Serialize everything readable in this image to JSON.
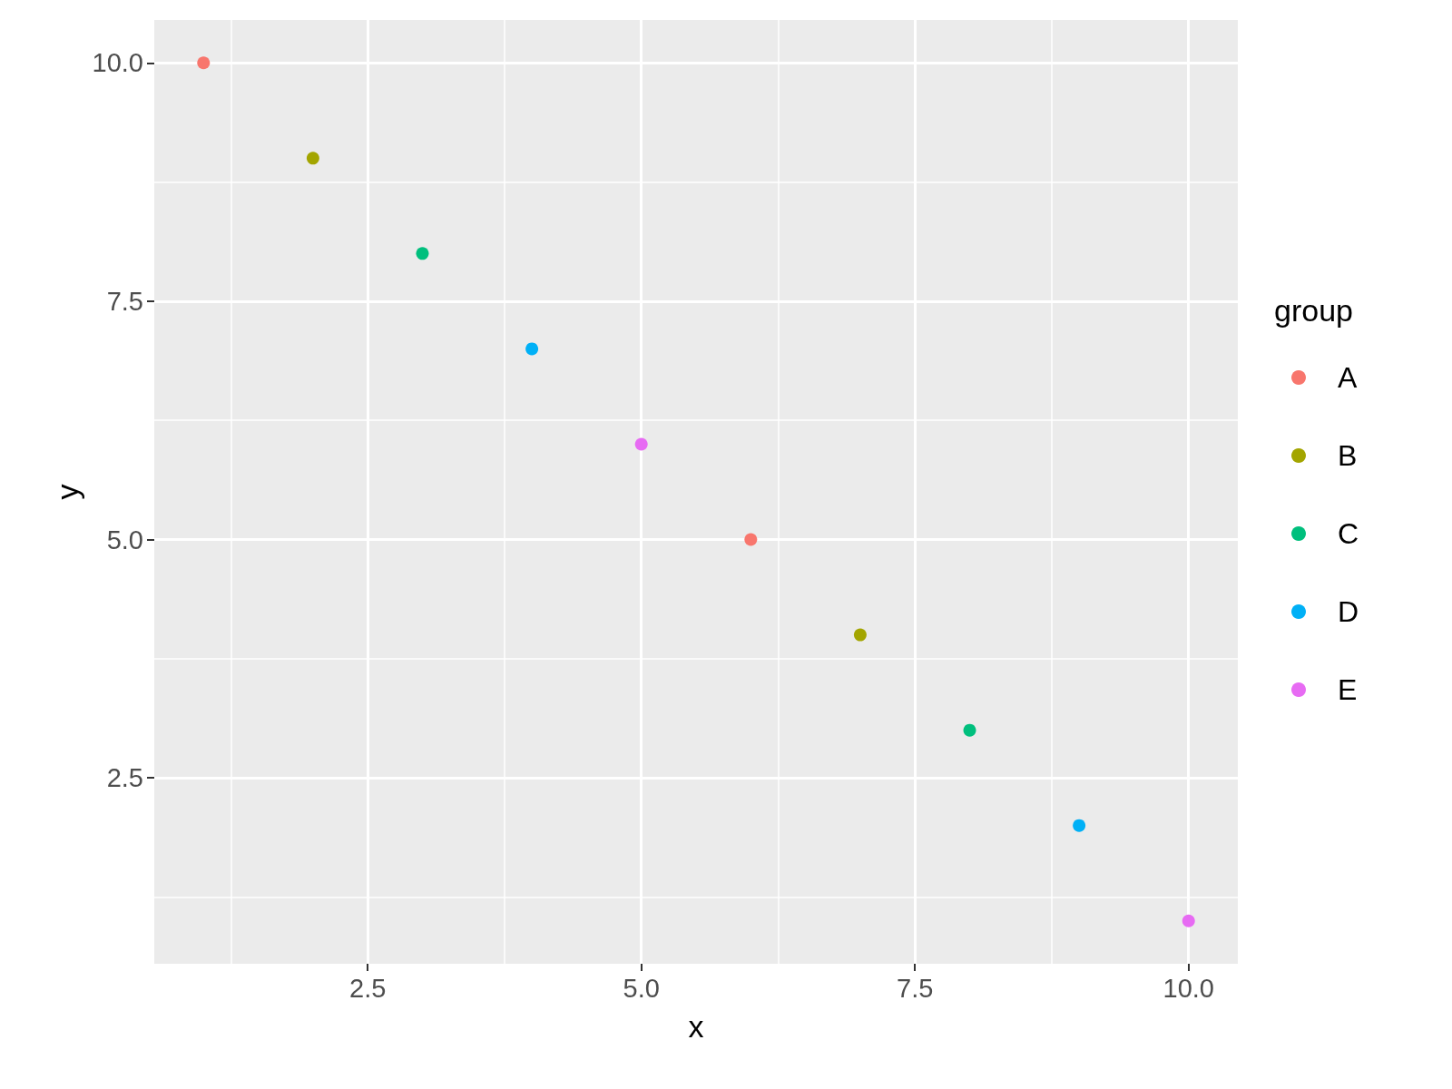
{
  "chart_data": {
    "type": "scatter",
    "xlabel": "x",
    "ylabel": "y",
    "legend_title": "group",
    "legend": "right",
    "grid": true,
    "marker": "circle",
    "xlim": [
      0.55,
      10.45
    ],
    "ylim": [
      0.55,
      10.45
    ],
    "xticks": [
      {
        "value": 2.5,
        "label": "2.5"
      },
      {
        "value": 5,
        "label": "5.0"
      },
      {
        "value": 7.5,
        "label": "7.5"
      },
      {
        "value": 10,
        "label": "10.0"
      }
    ],
    "yticks": [
      {
        "value": 2.5,
        "label": "2.5"
      },
      {
        "value": 5,
        "label": "5.0"
      },
      {
        "value": 7.5,
        "label": "7.5"
      },
      {
        "value": 10,
        "label": "10.0"
      }
    ],
    "series": [
      {
        "name": "A",
        "color": "#f8766d",
        "x": [
          1,
          6
        ],
        "values": [
          10,
          5
        ]
      },
      {
        "name": "B",
        "color": "#a3a500",
        "x": [
          2,
          7
        ],
        "values": [
          9,
          4
        ]
      },
      {
        "name": "C",
        "color": "#00bf7d",
        "x": [
          3,
          8
        ],
        "values": [
          8,
          3
        ]
      },
      {
        "name": "D",
        "color": "#00b0f6",
        "x": [
          4,
          9
        ],
        "values": [
          7,
          2
        ]
      },
      {
        "name": "E",
        "color": "#e76bf3",
        "x": [
          5,
          10
        ],
        "values": [
          6,
          1
        ]
      }
    ]
  }
}
